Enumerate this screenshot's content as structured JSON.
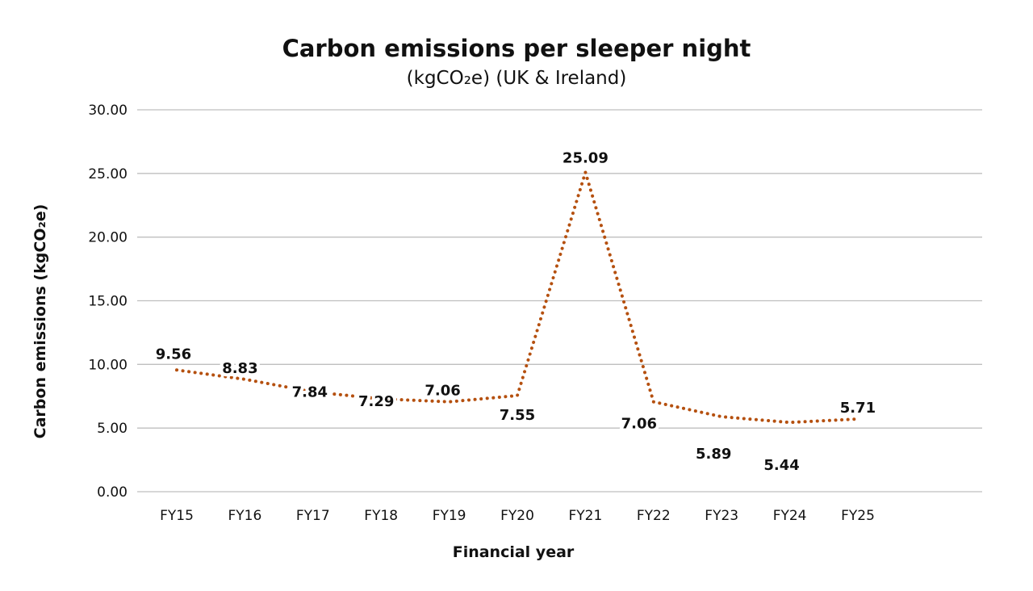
{
  "chart_data": {
    "type": "line",
    "title": "Carbon emissions per sleeper night",
    "subtitle": "(kgCO₂e)  (UK & Ireland)",
    "xlabel": "Financial year",
    "ylabel": "Carbon emissions (kgCO₂e)",
    "categories": [
      "FY15",
      "FY16",
      "FY17",
      "FY18",
      "FY19",
      "FY20",
      "FY21",
      "FY22",
      "FY23",
      "FY24",
      "FY25"
    ],
    "values": [
      9.56,
      8.83,
      7.84,
      7.29,
      7.06,
      7.55,
      25.09,
      7.06,
      5.89,
      5.44,
      5.71
    ],
    "data_labels": [
      "9.56",
      "8.83",
      "7.84",
      "7.29",
      "7.06",
      "7.55",
      "25.09",
      "7.06",
      "5.89",
      "5.44",
      "5.71"
    ],
    "yticks": [
      "0.00",
      "5.00",
      "10.00",
      "15.00",
      "20.00",
      "25.00",
      "30.00"
    ],
    "ylim": [
      0,
      30
    ],
    "grid": true,
    "line_style": "dotted",
    "colors": {
      "line": "#b5500f",
      "grid": "#bfbfbf"
    }
  }
}
